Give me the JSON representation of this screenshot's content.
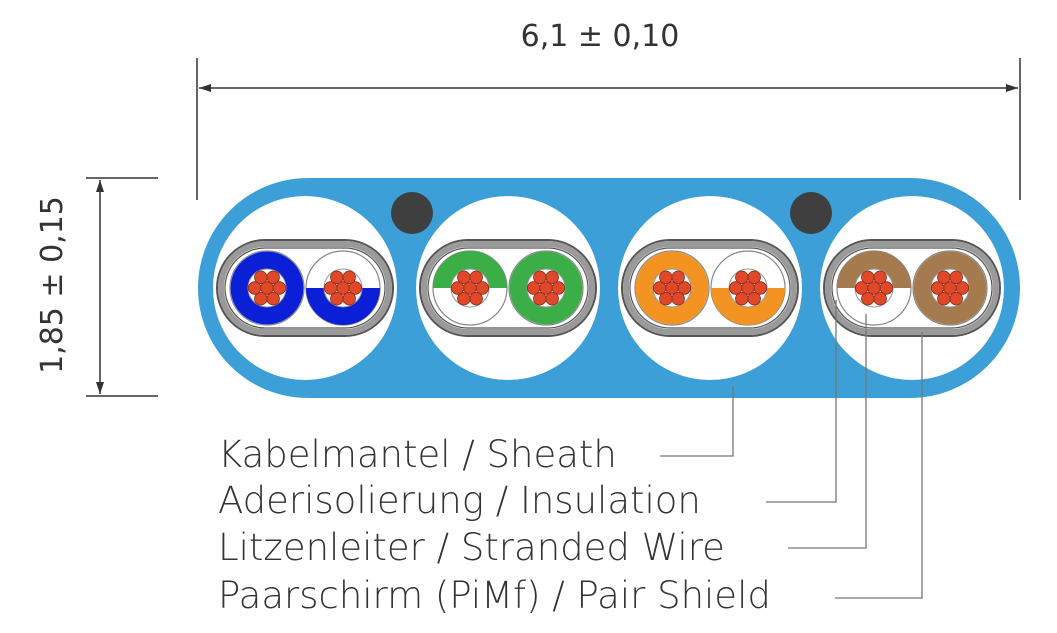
{
  "dimensions": {
    "width": "6,1 ± 0,10",
    "height": "1,85 ± 0,15"
  },
  "labels": [
    "Kabelmantel / Sheath",
    "Aderisolierung / Insulation",
    "Litzenleiter / Stranded Wire",
    "Paarschirm (PiMf) / Pair Shield"
  ],
  "colors": {
    "sheath": "#3d9fd8",
    "drain_wire": "#3f3f3f",
    "shield": "#8a8a8a",
    "strand": "#e0482a",
    "pairs": [
      "#0a1fd6",
      "#3cae48",
      "#f39322",
      "#a57a4f"
    ]
  },
  "pairs": [
    {
      "color": "#0a1fd6",
      "left": "solid",
      "right": "half-bottom"
    },
    {
      "color": "#3cae48",
      "left": "half-top",
      "right": "solid"
    },
    {
      "color": "#f39322",
      "left": "solid",
      "right": "half-bottom"
    },
    {
      "color": "#a57a4f",
      "left": "half-top",
      "right": "solid"
    }
  ]
}
